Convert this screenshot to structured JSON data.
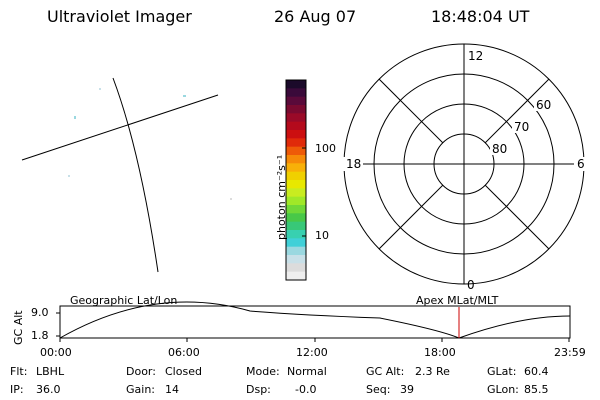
{
  "header": {
    "title": "Ultraviolet Imager",
    "date": "26 Aug 07",
    "time": "18:48:04 UT"
  },
  "colorbar": {
    "unit_label": "photon cm⁻²s⁻¹",
    "ticks": [
      "100",
      "10"
    ],
    "colors": [
      "#1b0a2a",
      "#3a0a3a",
      "#5a0a3a",
      "#7a0a30",
      "#9a0a28",
      "#b40a1c",
      "#cc0f10",
      "#e02a0a",
      "#ee5a08",
      "#f68a08",
      "#f8b008",
      "#f0d000",
      "#e8e800",
      "#c8ec20",
      "#a0e828",
      "#70d838",
      "#48c848",
      "#38c878",
      "#38d0b0",
      "#40d0d8",
      "#9ad8e0",
      "#c8e0e8",
      "#dcdcdc",
      "#eeeeee"
    ]
  },
  "polar": {
    "labels": {
      "top": "12",
      "left": "18",
      "right": "6",
      "bottom": "0"
    },
    "lat_labels": [
      "60",
      "70",
      "80"
    ]
  },
  "timeline": {
    "y_title": "GC Alt",
    "y_ticks": [
      "9.0",
      "1.8"
    ],
    "left_label": "Geographic Lat/Lon",
    "right_label": "Apex MLat/MLT",
    "x_ticks": [
      "00:00",
      "06:00",
      "12:00",
      "18:00",
      "23:59"
    ],
    "marker_color": "#cc0000"
  },
  "info": {
    "row1": [
      {
        "key": "Flt:",
        "value": "LBHL"
      },
      {
        "key": "Door:",
        "value": "Closed"
      },
      {
        "key": "Mode:",
        "value": "Normal"
      },
      {
        "key": "GC Alt:",
        "value": "2.3 Re"
      },
      {
        "key": "GLat:",
        "value": "60.4"
      }
    ],
    "row2": [
      {
        "key": "IP:",
        "value": "36.0"
      },
      {
        "key": "Gain:",
        "value": "14"
      },
      {
        "key": "Dsp:",
        "value": "-0.0"
      },
      {
        "key": "Seq:",
        "value": "39"
      },
      {
        "key": "GLon:",
        "value": "85.5"
      }
    ]
  }
}
